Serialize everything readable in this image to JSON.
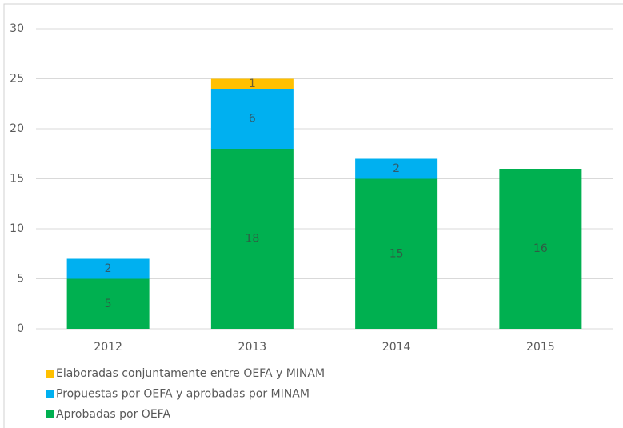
{
  "chart_data": {
    "type": "stacked_bar",
    "categories": [
      "2012",
      "2013",
      "2014",
      "2015"
    ],
    "series": [
      {
        "name": "Aprobadas por OEFA",
        "color": "#00b050",
        "values": [
          5,
          18,
          15,
          16
        ]
      },
      {
        "name": "Propuestas por OEFA y aprobadas por MINAM",
        "color": "#00b0f0",
        "values": [
          2,
          6,
          2,
          null
        ]
      },
      {
        "name": "Elaboradas conjuntamente entre OEFA y MINAM",
        "color": "#ffc000",
        "values": [
          null,
          1,
          null,
          null
        ]
      }
    ],
    "ylim": [
      0,
      30
    ],
    "yticks": [
      0,
      5,
      10,
      15,
      20,
      25,
      30
    ],
    "grid": true,
    "legend": "bottom-left"
  }
}
